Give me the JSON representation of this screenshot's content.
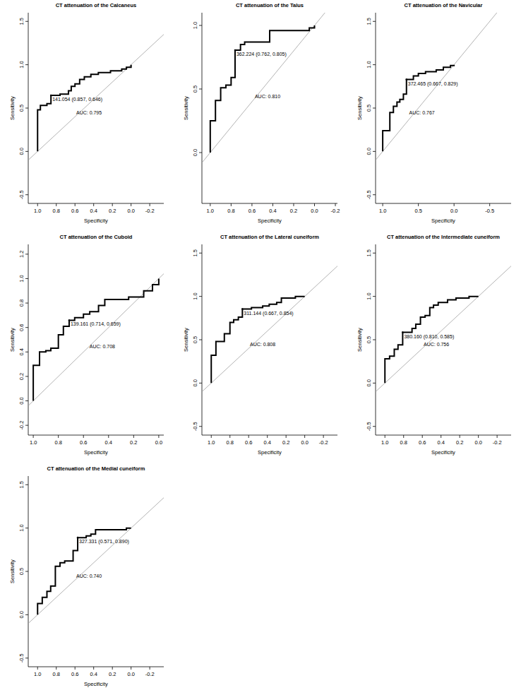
{
  "chart_data": [
    {
      "type": "line",
      "title": "CT attenuation of the Calcaneus",
      "x_label": "Specificity",
      "y_label": "Sensitivity",
      "color": "#000000",
      "line_style": "solid",
      "grid": false,
      "xlim": [
        1.1,
        -0.35
      ],
      "ylim": [
        -0.6,
        1.6
      ],
      "xticks": [
        {
          "value": 1,
          "label": "1.0"
        },
        0.8,
        0.6,
        0.4,
        0.2,
        {
          "value": 0,
          "label": "0.0"
        },
        -0.2
      ],
      "yticks": [
        -0.5,
        {
          "value": 0,
          "label": "0.0"
        },
        0.5,
        {
          "value": 1,
          "label": "1.0"
        },
        1.5
      ],
      "x": [
        1,
        1,
        0.97,
        0.97,
        0.9,
        0.9,
        0.857,
        0.857,
        0.76,
        0.76,
        0.67,
        0.67,
        0.64,
        0.64,
        0.6,
        0.6,
        0.55,
        0.55,
        0.5,
        0.5,
        0.43,
        0.43,
        0.35,
        0.35,
        0.22,
        0.22,
        0.1,
        0.1,
        0.05,
        0.05,
        0,
        0
      ],
      "values": [
        0,
        0.48,
        0.48,
        0.53,
        0.53,
        0.55,
        0.55,
        0.646,
        0.646,
        0.66,
        0.66,
        0.7,
        0.7,
        0.75,
        0.75,
        0.78,
        0.78,
        0.83,
        0.83,
        0.86,
        0.86,
        0.89,
        0.89,
        0.91,
        0.91,
        0.93,
        0.93,
        0.95,
        0.95,
        0.97,
        0.97,
        1
      ],
      "annotations": [
        {
          "text": "141.054 (0.857, 0.646)",
          "x": 0.857,
          "y": 0.646
        },
        {
          "text": "AUC: 0.795"
        }
      ]
    },
    {
      "type": "line",
      "title": "CT attenuation of the Talus",
      "x_label": "Specificity",
      "y_label": "Sensitivity",
      "color": "#000000",
      "line_style": "solid",
      "grid": false,
      "xlim": [
        1.08,
        -0.22
      ],
      "ylim": [
        -0.4,
        1.1
      ],
      "xticks": [
        {
          "value": 1,
          "label": "1.0"
        },
        0.8,
        0.6,
        0.4,
        0.2,
        {
          "value": 0,
          "label": "0.0"
        },
        -0.2
      ],
      "yticks": [
        {
          "value": 0,
          "label": "0.0"
        },
        0.5,
        {
          "value": 1,
          "label": "1.0"
        }
      ],
      "x": [
        1,
        1,
        0.95,
        0.95,
        0.9,
        0.9,
        0.85,
        0.85,
        0.8,
        0.8,
        0.762,
        0.762,
        0.71,
        0.71,
        0.67,
        0.67,
        0.43,
        0.43,
        0.05,
        0.05,
        0,
        0
      ],
      "values": [
        0,
        0.25,
        0.25,
        0.41,
        0.41,
        0.51,
        0.51,
        0.53,
        0.53,
        0.59,
        0.59,
        0.805,
        0.805,
        0.85,
        0.85,
        0.87,
        0.87,
        0.96,
        0.96,
        0.98,
        0.98,
        1
      ],
      "annotations": [
        {
          "text": "362.224 (0.762, 0.805)",
          "x": 0.762,
          "y": 0.805
        },
        {
          "text": "AUC: 0.810"
        }
      ]
    },
    {
      "type": "line",
      "title": "CT attenuation of the Navicular",
      "x_label": "Specificity",
      "y_label": "Sensitivity",
      "color": "#000000",
      "line_style": "solid",
      "grid": false,
      "xlim": [
        1.1,
        -0.8
      ],
      "ylim": [
        -0.6,
        1.6
      ],
      "xticks": [
        {
          "value": 1,
          "label": "1.0"
        },
        0.5,
        {
          "value": 0,
          "label": "0.0"
        },
        -0.5
      ],
      "yticks": [
        -0.5,
        {
          "value": 0,
          "label": "0.0"
        },
        0.5,
        {
          "value": 1,
          "label": "1.0"
        },
        1.5
      ],
      "x": [
        1,
        1,
        0.9,
        0.9,
        0.85,
        0.85,
        0.8,
        0.8,
        0.76,
        0.76,
        0.71,
        0.71,
        0.667,
        0.667,
        0.57,
        0.57,
        0.5,
        0.5,
        0.4,
        0.4,
        0.25,
        0.25,
        0.15,
        0.15,
        0.05,
        0.05,
        0,
        0
      ],
      "values": [
        0,
        0.24,
        0.24,
        0.45,
        0.45,
        0.52,
        0.52,
        0.57,
        0.57,
        0.6,
        0.6,
        0.66,
        0.66,
        0.829,
        0.829,
        0.87,
        0.87,
        0.9,
        0.9,
        0.92,
        0.92,
        0.94,
        0.94,
        0.97,
        0.97,
        0.99,
        0.99,
        1
      ],
      "annotations": [
        {
          "text": "372.465 (0.667, 0.829)",
          "x": 0.667,
          "y": 0.829
        },
        {
          "text": "AUC: 0.767"
        }
      ]
    },
    {
      "type": "line",
      "title": "CT attenuation of the Cuboid",
      "x_label": "Specificity",
      "y_label": "Sensitivity",
      "color": "#000000",
      "line_style": "solid",
      "grid": false,
      "xlim": [
        1.04,
        -0.04
      ],
      "ylim": [
        -0.28,
        1.28
      ],
      "xticks": [
        {
          "value": 1,
          "label": "1.0"
        },
        0.8,
        0.6,
        0.4,
        0.2,
        {
          "value": 0,
          "label": "0.0"
        }
      ],
      "yticks": [
        -0.2,
        {
          "value": 0,
          "label": "0.0"
        },
        0.2,
        0.4,
        0.6,
        0.8,
        {
          "value": 1,
          "label": "1.0"
        },
        1.2
      ],
      "x": [
        1,
        1,
        0.95,
        0.95,
        0.9,
        0.9,
        0.86,
        0.86,
        0.8,
        0.8,
        0.76,
        0.76,
        0.714,
        0.714,
        0.67,
        0.67,
        0.6,
        0.6,
        0.55,
        0.55,
        0.48,
        0.48,
        0.43,
        0.43,
        0.24,
        0.24,
        0.12,
        0.12,
        0.05,
        0.05,
        0,
        0
      ],
      "values": [
        0,
        0.29,
        0.29,
        0.4,
        0.4,
        0.41,
        0.41,
        0.43,
        0.43,
        0.54,
        0.54,
        0.61,
        0.61,
        0.659,
        0.659,
        0.68,
        0.68,
        0.71,
        0.71,
        0.73,
        0.73,
        0.78,
        0.78,
        0.83,
        0.83,
        0.85,
        0.85,
        0.9,
        0.9,
        0.95,
        0.95,
        1
      ],
      "annotations": [
        {
          "text": "139.161 (0.714, 0.659)",
          "x": 0.714,
          "y": 0.659
        },
        {
          "text": "AUC: 0.708"
        }
      ]
    },
    {
      "type": "line",
      "title": "CT attenuation of the Lateral cuneiform",
      "x_label": "Specificity",
      "y_label": "Sensitivity",
      "color": "#000000",
      "line_style": "solid",
      "grid": false,
      "xlim": [
        1.1,
        -0.35
      ],
      "ylim": [
        -0.6,
        1.6
      ],
      "xticks": [
        {
          "value": 1,
          "label": "1.0"
        },
        0.8,
        0.6,
        0.4,
        0.2,
        {
          "value": 0,
          "label": "0.0"
        },
        -0.2
      ],
      "yticks": [
        -0.5,
        {
          "value": 0,
          "label": "0.0"
        },
        0.5,
        {
          "value": 1,
          "label": "1.0"
        },
        1.5
      ],
      "x": [
        1,
        1,
        0.95,
        0.95,
        0.86,
        0.86,
        0.8,
        0.8,
        0.76,
        0.76,
        0.71,
        0.71,
        0.667,
        0.667,
        0.57,
        0.57,
        0.45,
        0.45,
        0.38,
        0.38,
        0.3,
        0.3,
        0.25,
        0.25,
        0.1,
        0.1,
        0
      ],
      "values": [
        0,
        0.32,
        0.32,
        0.48,
        0.48,
        0.57,
        0.57,
        0.7,
        0.7,
        0.73,
        0.73,
        0.76,
        0.76,
        0.854,
        0.854,
        0.87,
        0.87,
        0.89,
        0.89,
        0.91,
        0.91,
        0.93,
        0.93,
        0.98,
        0.98,
        1,
        1
      ],
      "annotations": [
        {
          "text": "311.144 (0.667, 0.854)",
          "x": 0.667,
          "y": 0.854
        },
        {
          "text": "AUC: 0.808"
        }
      ]
    },
    {
      "type": "line",
      "title": "CT attenuation of the Intermediate cuneiform",
      "x_label": "Specificity",
      "y_label": "Sensitivity",
      "color": "#000000",
      "line_style": "solid",
      "grid": false,
      "xlim": [
        1.1,
        -0.35
      ],
      "ylim": [
        -0.6,
        1.6
      ],
      "xticks": [
        {
          "value": 1,
          "label": "1.0"
        },
        0.8,
        0.6,
        0.4,
        0.2,
        {
          "value": 0,
          "label": "0.0"
        },
        -0.2
      ],
      "yticks": [
        -0.5,
        {
          "value": 0,
          "label": "0.0"
        },
        0.5,
        {
          "value": 1,
          "label": "1.0"
        },
        1.5
      ],
      "x": [
        1,
        1,
        0.95,
        0.95,
        0.9,
        0.9,
        0.86,
        0.86,
        0.81,
        0.81,
        0.71,
        0.71,
        0.67,
        0.67,
        0.62,
        0.62,
        0.57,
        0.57,
        0.52,
        0.52,
        0.48,
        0.48,
        0.43,
        0.43,
        0.33,
        0.33,
        0.24,
        0.24,
        0.1,
        0.1,
        0
      ],
      "values": [
        0,
        0.28,
        0.28,
        0.31,
        0.31,
        0.39,
        0.39,
        0.44,
        0.44,
        0.585,
        0.585,
        0.63,
        0.63,
        0.68,
        0.68,
        0.76,
        0.76,
        0.78,
        0.78,
        0.87,
        0.87,
        0.9,
        0.9,
        0.93,
        0.93,
        0.96,
        0.96,
        0.98,
        0.98,
        1,
        1
      ],
      "annotations": [
        {
          "text": "380.160 (0.810, 0.585)",
          "x": 0.81,
          "y": 0.585
        },
        {
          "text": "AUC: 0.756"
        }
      ]
    },
    {
      "type": "line",
      "title": "CT attenuation of the Medial cuneiform",
      "x_label": "Specificity",
      "y_label": "Sensitivity",
      "color": "#000000",
      "line_style": "solid",
      "grid": false,
      "xlim": [
        1.1,
        -0.35
      ],
      "ylim": [
        -0.6,
        1.6
      ],
      "xticks": [
        {
          "value": 1,
          "label": "1.0"
        },
        0.8,
        0.6,
        0.4,
        0.2,
        {
          "value": 0,
          "label": "0.0"
        },
        -0.2
      ],
      "yticks": [
        -0.5,
        {
          "value": 0,
          "label": "0.0"
        },
        0.5,
        {
          "value": 1,
          "label": "1.0"
        },
        1.5
      ],
      "x": [
        1,
        1,
        0.95,
        0.95,
        0.9,
        0.9,
        0.86,
        0.86,
        0.81,
        0.81,
        0.76,
        0.76,
        0.71,
        0.71,
        0.62,
        0.62,
        0.571,
        0.571,
        0.48,
        0.48,
        0.43,
        0.43,
        0.38,
        0.38,
        0.05,
        0.05,
        0
      ],
      "values": [
        0,
        0.13,
        0.13,
        0.2,
        0.2,
        0.27,
        0.27,
        0.33,
        0.33,
        0.56,
        0.56,
        0.6,
        0.6,
        0.62,
        0.62,
        0.74,
        0.74,
        0.89,
        0.89,
        0.91,
        0.91,
        0.93,
        0.93,
        0.98,
        0.98,
        1,
        1
      ],
      "annotations": [
        {
          "text": "327.331 (0.571, 0.890)",
          "x": 0.571,
          "y": 0.89
        },
        {
          "text": "AUC: 0.740"
        }
      ]
    }
  ]
}
